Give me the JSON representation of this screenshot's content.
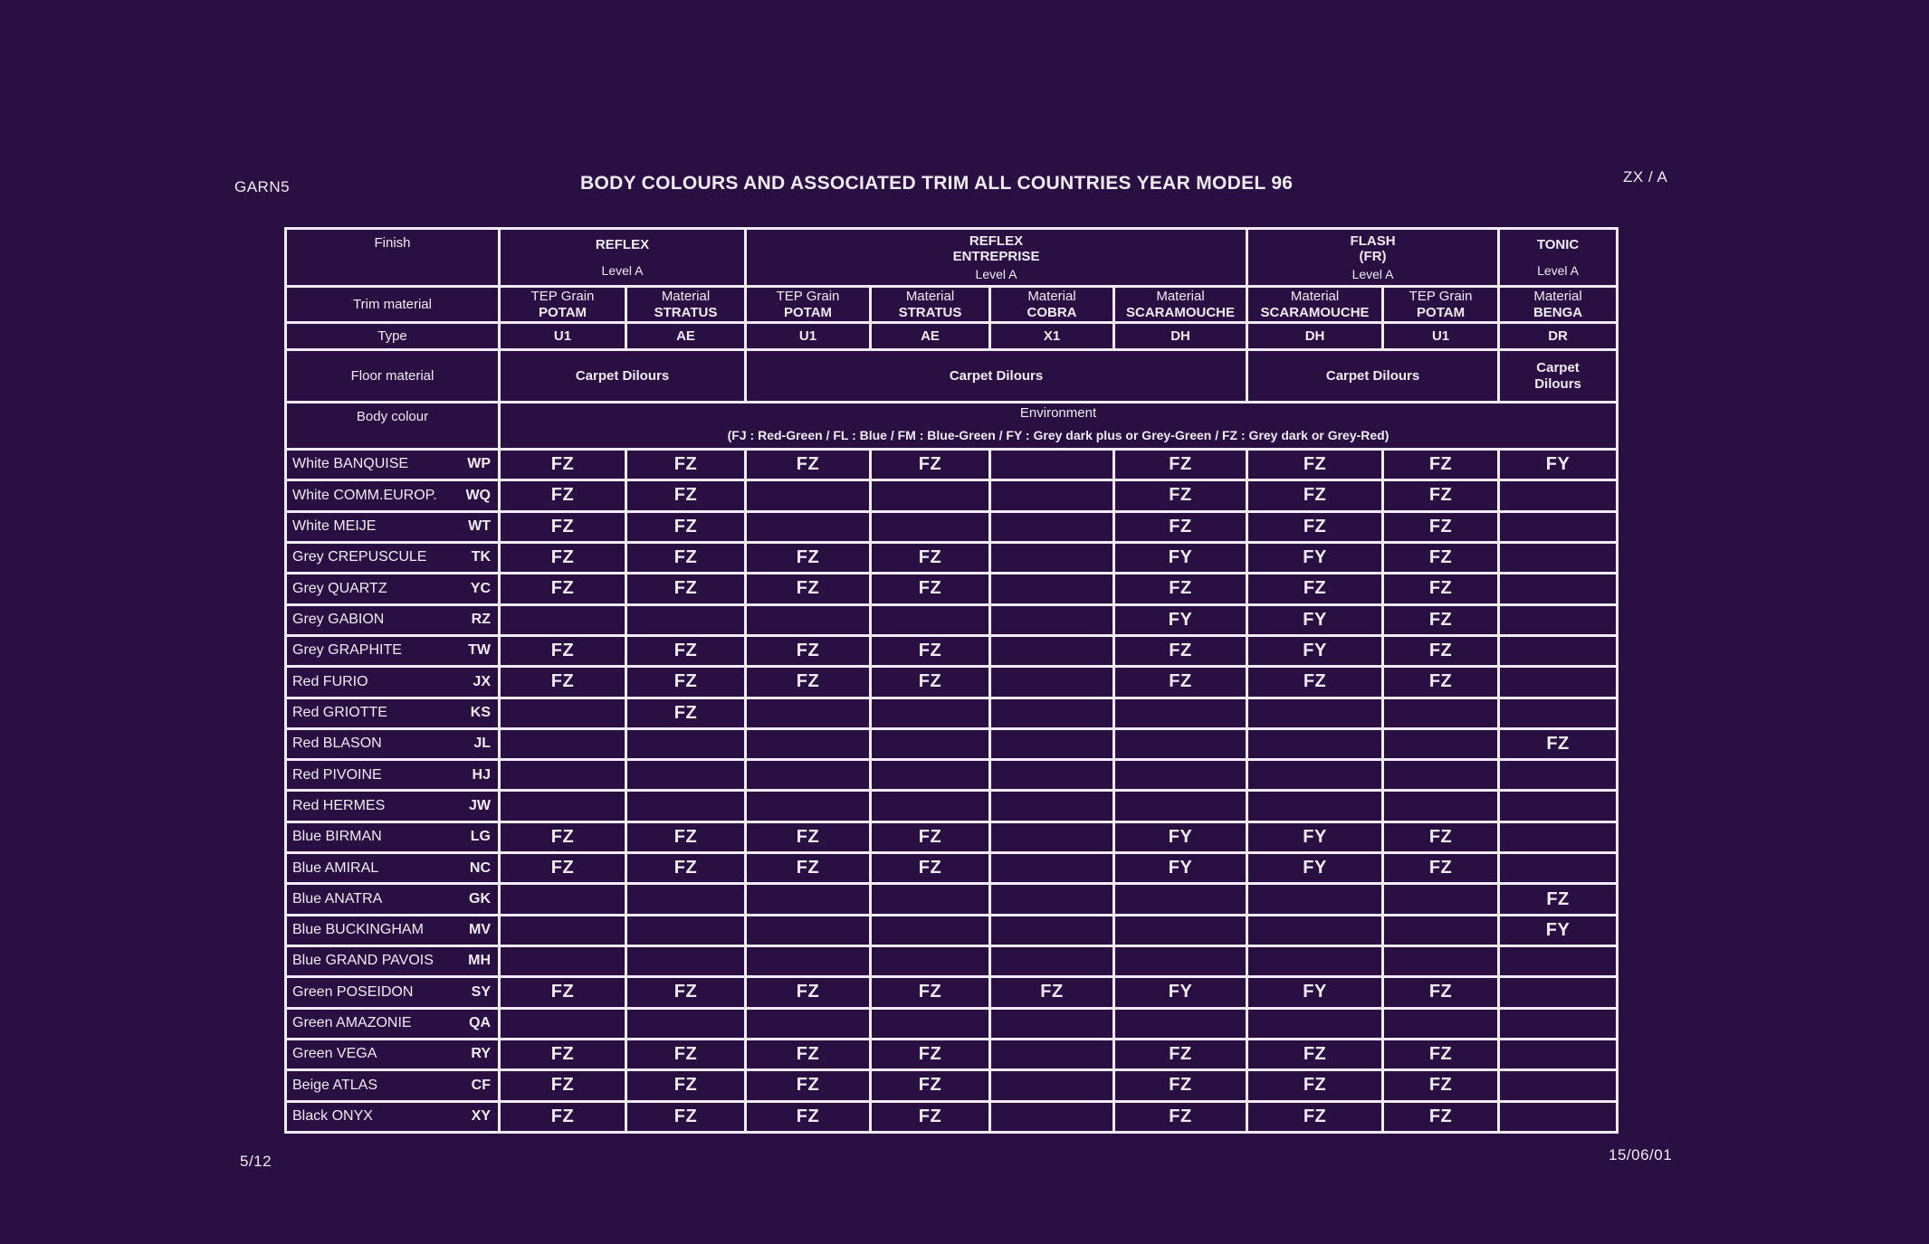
{
  "header": {
    "left_code": "GARN5",
    "title": "BODY COLOURS AND ASSOCIATED TRIM ALL COUNTRIES YEAR MODEL 96",
    "right_code": "ZX / A"
  },
  "footer": {
    "page": "5/12",
    "date": "15/06/01"
  },
  "table": {
    "labels": {
      "finish": "Finish",
      "trim_material": "Trim material",
      "type": "Type",
      "floor_material": "Floor material",
      "body_colour": "Body colour"
    },
    "groups": [
      {
        "name_lines": [
          "REFLEX"
        ],
        "level": "Level A"
      },
      {
        "name_lines": [
          "REFLEX",
          "ENTREPRISE"
        ],
        "level": "Level A"
      },
      {
        "name_lines": [
          "FLASH",
          "(FR)"
        ],
        "level": "Level A"
      },
      {
        "name_lines": [
          "TONIC"
        ],
        "level": "Level A"
      }
    ],
    "trim": [
      {
        "l1": "TEP Grain",
        "l2": "POTAM"
      },
      {
        "l1": "Material",
        "l2": "STRATUS"
      },
      {
        "l1": "TEP Grain",
        "l2": "POTAM"
      },
      {
        "l1": "Material",
        "l2": "STRATUS"
      },
      {
        "l1": "Material",
        "l2": "COBRA"
      },
      {
        "l1": "Material",
        "l2": "SCARAMOUCHE"
      },
      {
        "l1": "Material",
        "l2": "SCARAMOUCHE"
      },
      {
        "l1": "TEP Grain",
        "l2": "POTAM"
      },
      {
        "l1": "Material",
        "l2": "BENGA"
      }
    ],
    "types": [
      "U1",
      "AE",
      "U1",
      "AE",
      "X1",
      "DH",
      "DH",
      "U1",
      "DR"
    ],
    "floor": [
      {
        "lines": [
          "Carpet Dilours"
        ]
      },
      {
        "lines": [
          "Carpet Dilours"
        ]
      },
      {
        "lines": [
          "Carpet Dilours"
        ]
      },
      {
        "lines": [
          "Carpet",
          "Dilours"
        ]
      }
    ],
    "environment": {
      "title": "Environment",
      "legend": "(FJ : Red-Green / FL : Blue / FM : Blue-Green / FY : Grey dark plus or Grey-Green / FZ : Grey dark or Grey-Red)"
    },
    "rows": [
      {
        "name": "White BANQUISE",
        "code": "WP",
        "cells": [
          "FZ",
          "FZ",
          "FZ",
          "FZ",
          "",
          "FZ",
          "FZ",
          "FZ",
          "FY"
        ]
      },
      {
        "name": "White COMM.EUROP.",
        "code": "WQ",
        "cells": [
          "FZ",
          "FZ",
          "",
          "",
          "",
          "FZ",
          "FZ",
          "FZ",
          ""
        ]
      },
      {
        "name": "White MEIJE",
        "code": "WT",
        "cells": [
          "FZ",
          "FZ",
          "",
          "",
          "",
          "FZ",
          "FZ",
          "FZ",
          ""
        ]
      },
      {
        "name": "Grey CREPUSCULE",
        "code": "TK",
        "cells": [
          "FZ",
          "FZ",
          "FZ",
          "FZ",
          "",
          "FY",
          "FY",
          "FZ",
          ""
        ]
      },
      {
        "name": "Grey QUARTZ",
        "code": "YC",
        "cells": [
          "FZ",
          "FZ",
          "FZ",
          "FZ",
          "",
          "FZ",
          "FZ",
          "FZ",
          ""
        ]
      },
      {
        "name": "Grey GABION",
        "code": "RZ",
        "cells": [
          "",
          "",
          "",
          "",
          "",
          "FY",
          "FY",
          "FZ",
          ""
        ]
      },
      {
        "name": "Grey GRAPHITE",
        "code": "TW",
        "cells": [
          "FZ",
          "FZ",
          "FZ",
          "FZ",
          "",
          "FZ",
          "FY",
          "FZ",
          ""
        ]
      },
      {
        "name": "Red FURIO",
        "code": "JX",
        "cells": [
          "FZ",
          "FZ",
          "FZ",
          "FZ",
          "",
          "FZ",
          "FZ",
          "FZ",
          ""
        ]
      },
      {
        "name": "Red GRIOTTE",
        "code": "KS",
        "cells": [
          "",
          "FZ",
          "",
          "",
          "",
          "",
          "",
          "",
          ""
        ]
      },
      {
        "name": "Red BLASON",
        "code": "JL",
        "cells": [
          "",
          "",
          "",
          "",
          "",
          "",
          "",
          "",
          "FZ"
        ]
      },
      {
        "name": "Red PIVOINE",
        "code": "HJ",
        "cells": [
          "",
          "",
          "",
          "",
          "",
          "",
          "",
          "",
          ""
        ]
      },
      {
        "name": "Red HERMES",
        "code": "JW",
        "cells": [
          "",
          "",
          "",
          "",
          "",
          "",
          "",
          "",
          ""
        ]
      },
      {
        "name": "Blue BIRMAN",
        "code": "LG",
        "cells": [
          "FZ",
          "FZ",
          "FZ",
          "FZ",
          "",
          "FY",
          "FY",
          "FZ",
          ""
        ]
      },
      {
        "name": "Blue AMIRAL",
        "code": "NC",
        "cells": [
          "FZ",
          "FZ",
          "FZ",
          "FZ",
          "",
          "FY",
          "FY",
          "FZ",
          ""
        ]
      },
      {
        "name": "Blue ANATRA",
        "code": "GK",
        "cells": [
          "",
          "",
          "",
          "",
          "",
          "",
          "",
          "",
          "FZ"
        ]
      },
      {
        "name": "Blue BUCKINGHAM",
        "code": "MV",
        "cells": [
          "",
          "",
          "",
          "",
          "",
          "",
          "",
          "",
          "FY"
        ]
      },
      {
        "name": "Blue GRAND PAVOIS",
        "code": "MH",
        "cells": [
          "",
          "",
          "",
          "",
          "",
          "",
          "",
          "",
          ""
        ]
      },
      {
        "name": "Green POSEIDON",
        "code": "SY",
        "cells": [
          "FZ",
          "FZ",
          "FZ",
          "FZ",
          "FZ",
          "FY",
          "FY",
          "FZ",
          ""
        ]
      },
      {
        "name": "Green AMAZONIE",
        "code": "QA",
        "cells": [
          "",
          "",
          "",
          "",
          "",
          "",
          "",
          "",
          ""
        ]
      },
      {
        "name": "Green VEGA",
        "code": "RY",
        "cells": [
          "FZ",
          "FZ",
          "FZ",
          "FZ",
          "",
          "FZ",
          "FZ",
          "FZ",
          ""
        ]
      },
      {
        "name": "Beige ATLAS",
        "code": "CF",
        "cells": [
          "FZ",
          "FZ",
          "FZ",
          "FZ",
          "",
          "FZ",
          "FZ",
          "FZ",
          ""
        ]
      },
      {
        "name": "Black ONYX",
        "code": "XY",
        "cells": [
          "FZ",
          "FZ",
          "FZ",
          "FZ",
          "",
          "FZ",
          "FZ",
          "FZ",
          ""
        ]
      }
    ]
  }
}
